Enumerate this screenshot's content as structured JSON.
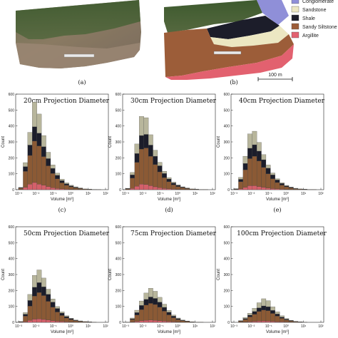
{
  "top_panels": {
    "caption_a": "(a)",
    "caption_b": "(b)",
    "scale_label": "100 m",
    "legend": [
      {
        "label": "Conglomerate",
        "color": "#8f8fd8"
      },
      {
        "label": "Sandstone",
        "color": "#ece7c2"
      },
      {
        "label": "Shale",
        "color": "#1c1d2a"
      },
      {
        "label": "Sandy Siltstone",
        "color": "#9c5d39"
      },
      {
        "label": "Argillite",
        "color": "#e2616f"
      }
    ]
  },
  "colors": {
    "conglomerate": "#8f8fd8",
    "sandstone": "#b8b69c",
    "shale": "#1c1d2a",
    "sandy_siltstone": "#8b5a35",
    "argillite": "#d4606a"
  },
  "chart_data": [
    {
      "type": "bar",
      "stacked": true,
      "title": "20cm  Projection  Diameter",
      "caption": "(c)",
      "xlabel": "Volume [m³]",
      "ylabel": "Count",
      "x_scale": "log",
      "x_ticks": [
        "10⁻³",
        "10⁻²",
        "10⁻¹",
        "10⁰",
        "10¹",
        "10²"
      ],
      "ylim": [
        0,
        600
      ],
      "y_ticks": [
        "0",
        "100",
        "200",
        "300",
        "400",
        "500",
        "600"
      ],
      "series": [
        {
          "name": "Argillite",
          "values": [
            2,
            15,
            35,
            45,
            35,
            28,
            20,
            12,
            8,
            5,
            3,
            2,
            1,
            1,
            0,
            0,
            0,
            0,
            0
          ]
        },
        {
          "name": "Sandy Siltstone",
          "values": [
            8,
            100,
            180,
            260,
            240,
            180,
            130,
            90,
            60,
            38,
            25,
            16,
            10,
            6,
            3,
            2,
            1,
            1,
            0
          ]
        },
        {
          "name": "Shale",
          "values": [
            3,
            30,
            65,
            90,
            80,
            62,
            45,
            32,
            22,
            14,
            9,
            6,
            4,
            2,
            1,
            1,
            0,
            0,
            0
          ]
        },
        {
          "name": "Sandstone",
          "values": [
            2,
            25,
            80,
            155,
            120,
            70,
            40,
            22,
            14,
            9,
            6,
            4,
            3,
            2,
            1,
            1,
            1,
            0,
            0
          ]
        }
      ]
    },
    {
      "type": "bar",
      "stacked": true,
      "title": "30cm  Projection  Diameter",
      "caption": "(d)",
      "xlabel": "Volume [m³]",
      "ylabel": "Count",
      "x_scale": "log",
      "x_ticks": [
        "10⁻³",
        "10⁻²",
        "10⁻¹",
        "10⁰",
        "10¹",
        "10²"
      ],
      "ylim": [
        0,
        600
      ],
      "y_ticks": [
        "0",
        "100",
        "200",
        "300",
        "400",
        "500",
        "600"
      ],
      "series": [
        {
          "name": "Argillite",
          "values": [
            1,
            8,
            22,
            35,
            32,
            25,
            18,
            12,
            8,
            5,
            3,
            2,
            1,
            1,
            0,
            0,
            0,
            0,
            0
          ]
        },
        {
          "name": "Sandy Siltstone",
          "values": [
            4,
            65,
            150,
            220,
            230,
            185,
            140,
            100,
            68,
            45,
            28,
            18,
            11,
            6,
            3,
            2,
            1,
            1,
            0
          ]
        },
        {
          "name": "Shale",
          "values": [
            2,
            20,
            55,
            85,
            85,
            70,
            52,
            38,
            26,
            17,
            11,
            7,
            4,
            2,
            1,
            1,
            0,
            0,
            0
          ]
        },
        {
          "name": "Sandstone",
          "values": [
            1,
            15,
            60,
            120,
            105,
            65,
            38,
            22,
            14,
            9,
            6,
            4,
            2,
            2,
            1,
            1,
            0,
            0,
            0
          ]
        }
      ]
    },
    {
      "type": "bar",
      "stacked": true,
      "title": "40cm  Projection  Diameter",
      "caption": "(e)",
      "xlabel": "Volume [m³]",
      "ylabel": "Count",
      "x_scale": "log",
      "x_ticks": [
        "10⁻³",
        "10⁻²",
        "10⁻¹",
        "10⁰",
        "10¹",
        "10²"
      ],
      "ylim": [
        0,
        600
      ],
      "y_ticks": [
        "0",
        "100",
        "200",
        "300",
        "400",
        "500",
        "600"
      ],
      "series": [
        {
          "name": "Argillite",
          "values": [
            1,
            5,
            15,
            25,
            25,
            20,
            15,
            10,
            7,
            5,
            3,
            2,
            1,
            1,
            0,
            0,
            0,
            0,
            0
          ]
        },
        {
          "name": "Sandy Siltstone",
          "values": [
            3,
            45,
            110,
            170,
            185,
            160,
            125,
            90,
            62,
            40,
            26,
            16,
            10,
            5,
            3,
            2,
            1,
            1,
            0
          ]
        },
        {
          "name": "Shale",
          "values": [
            1,
            15,
            40,
            65,
            72,
            62,
            48,
            35,
            24,
            16,
            10,
            6,
            4,
            2,
            1,
            1,
            0,
            0,
            0
          ]
        },
        {
          "name": "Sandstone",
          "values": [
            1,
            12,
            45,
            90,
            85,
            55,
            32,
            20,
            12,
            8,
            5,
            3,
            2,
            1,
            1,
            0,
            0,
            0,
            0
          ]
        }
      ]
    },
    {
      "type": "bar",
      "stacked": true,
      "title": "50cm  Projection  Diameter",
      "caption": "",
      "xlabel": "Volume [m³]",
      "ylabel": "Count",
      "x_scale": "log",
      "x_ticks": [
        "10⁻³",
        "10⁻²",
        "10⁻¹",
        "10⁰",
        "10¹",
        "10²"
      ],
      "ylim": [
        0,
        600
      ],
      "y_ticks": [
        "0",
        "100",
        "200",
        "300",
        "400",
        "500",
        "600"
      ],
      "series": [
        {
          "name": "Argillite",
          "values": [
            1,
            4,
            12,
            20,
            22,
            18,
            14,
            10,
            7,
            5,
            3,
            2,
            1,
            1,
            0,
            0,
            0,
            0,
            0
          ]
        },
        {
          "name": "Sandy Siltstone",
          "values": [
            2,
            35,
            90,
            145,
            165,
            150,
            118,
            85,
            58,
            38,
            24,
            15,
            9,
            5,
            3,
            2,
            1,
            0,
            0
          ]
        },
        {
          "name": "Shale",
          "values": [
            1,
            12,
            35,
            55,
            62,
            55,
            44,
            32,
            22,
            15,
            9,
            6,
            3,
            2,
            1,
            1,
            0,
            0,
            0
          ]
        },
        {
          "name": "Sandstone",
          "values": [
            1,
            10,
            38,
            75,
            80,
            55,
            32,
            20,
            12,
            8,
            5,
            3,
            2,
            1,
            1,
            0,
            0,
            0,
            0
          ]
        }
      ]
    },
    {
      "type": "bar",
      "stacked": true,
      "title": "75cm  Projection  Diameter",
      "caption": "",
      "xlabel": "Volume [m³]",
      "ylabel": "Count",
      "x_scale": "log",
      "x_ticks": [
        "10⁻³",
        "10⁻²",
        "10⁻¹",
        "10⁰",
        "10¹",
        "10²"
      ],
      "ylim": [
        0,
        600
      ],
      "y_ticks": [
        "0",
        "100",
        "200",
        "300",
        "400",
        "500",
        "600"
      ],
      "series": [
        {
          "name": "Argillite",
          "values": [
            0,
            2,
            6,
            10,
            13,
            14,
            12,
            10,
            8,
            5,
            3,
            2,
            1,
            0,
            0,
            0,
            0,
            0,
            0
          ]
        },
        {
          "name": "Sandy Siltstone",
          "values": [
            1,
            15,
            40,
            70,
            95,
            105,
            100,
            85,
            62,
            42,
            26,
            15,
            9,
            5,
            2,
            1,
            1,
            0,
            0
          ]
        },
        {
          "name": "Shale",
          "values": [
            0,
            5,
            15,
            26,
            36,
            40,
            38,
            32,
            24,
            16,
            10,
            6,
            3,
            2,
            1,
            0,
            0,
            0,
            0
          ]
        },
        {
          "name": "Sandstone",
          "values": [
            0,
            5,
            15,
            28,
            40,
            55,
            45,
            30,
            20,
            12,
            7,
            4,
            2,
            1,
            1,
            0,
            0,
            0,
            0
          ]
        }
      ]
    },
    {
      "type": "bar",
      "stacked": true,
      "title": "100cm  Projection  Diameter",
      "caption": "",
      "xlabel": "Volume [m³]",
      "ylabel": "Count",
      "x_scale": "log",
      "x_ticks": [
        "10⁻³",
        "10⁻²",
        "10⁻¹",
        "10⁰",
        "10¹",
        "10²"
      ],
      "ylim": [
        0,
        600
      ],
      "y_ticks": [
        "0",
        "100",
        "200",
        "300",
        "400",
        "500",
        "600"
      ],
      "series": [
        {
          "name": "Argillite",
          "values": [
            0,
            1,
            2,
            4,
            6,
            8,
            9,
            8,
            6,
            4,
            3,
            2,
            1,
            0,
            0,
            0,
            0,
            0,
            0
          ]
        },
        {
          "name": "Sandy Siltstone",
          "values": [
            0,
            6,
            16,
            30,
            45,
            60,
            68,
            65,
            50,
            35,
            22,
            13,
            7,
            4,
            2,
            1,
            0,
            0,
            0
          ]
        },
        {
          "name": "Shale",
          "values": [
            0,
            2,
            6,
            11,
            17,
            23,
            26,
            25,
            19,
            13,
            8,
            5,
            3,
            1,
            1,
            0,
            0,
            0,
            0
          ]
        },
        {
          "name": "Sandstone",
          "values": [
            0,
            2,
            6,
            12,
            20,
            32,
            45,
            38,
            22,
            14,
            8,
            4,
            2,
            1,
            0,
            0,
            0,
            0,
            0
          ]
        }
      ]
    }
  ]
}
